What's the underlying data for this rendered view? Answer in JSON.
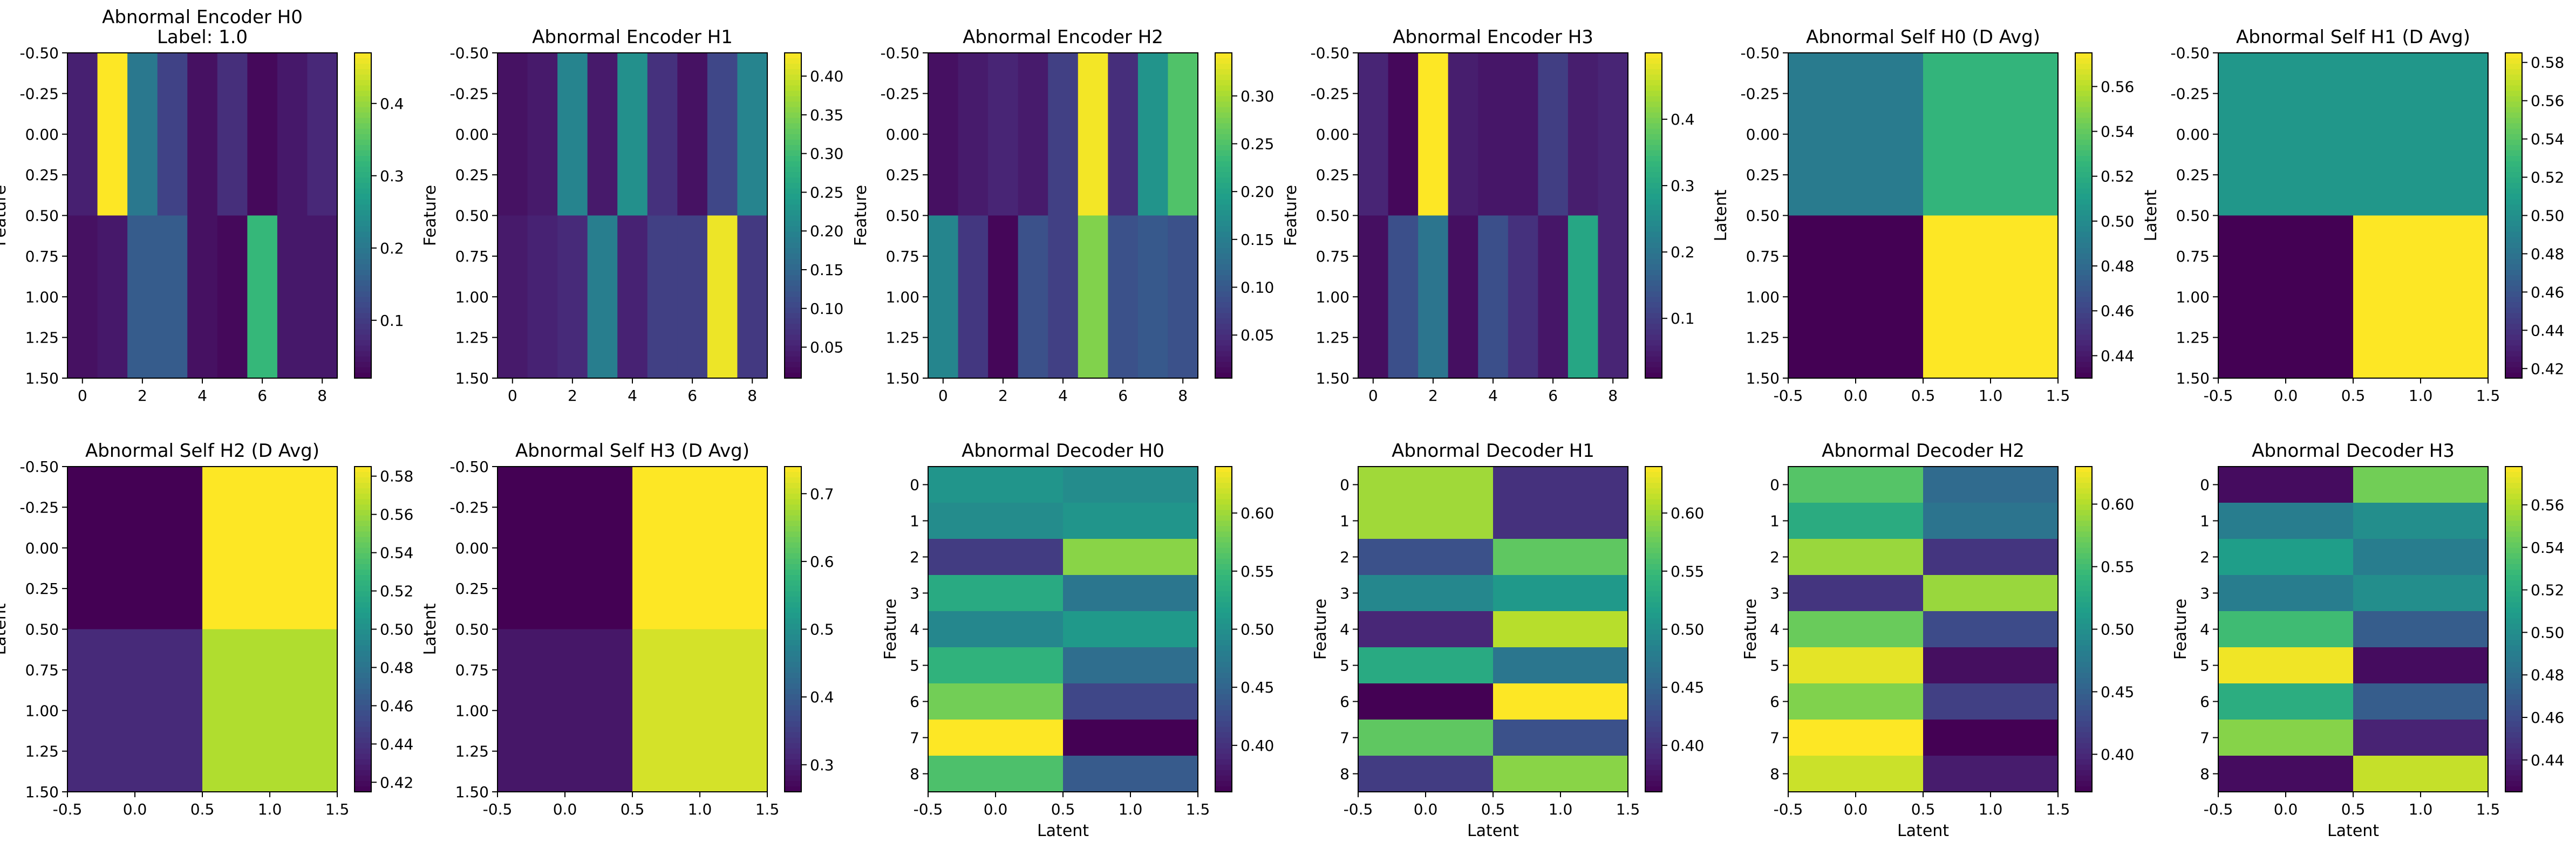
{
  "colormap": "viridis",
  "chart_data": [
    {
      "type": "heatmap",
      "title": "Abnormal Encoder H0\nLabel: 1.0",
      "xlabel": "",
      "ylabel": "Feature",
      "extent": [
        -0.5,
        8.5,
        1.5,
        -0.5
      ],
      "xticks": [
        "0",
        "2",
        "4",
        "6",
        "8"
      ],
      "yticks": [
        "-0.50",
        "-0.25",
        "0.00",
        "0.25",
        "0.50",
        "0.75",
        "1.00",
        "1.25",
        "1.50"
      ],
      "values": [
        [
          0.06,
          0.47,
          0.2,
          0.11,
          0.04,
          0.08,
          0.03,
          0.05,
          0.07
        ],
        [
          0.04,
          0.05,
          0.15,
          0.15,
          0.04,
          0.03,
          0.32,
          0.05,
          0.05
        ]
      ],
      "vmin": 0.02,
      "vmax": 0.47,
      "colorbar_ticks": [
        "0.1",
        "0.2",
        "0.3",
        "0.4"
      ]
    },
    {
      "type": "heatmap",
      "title": "Abnormal Encoder H1",
      "xlabel": "",
      "ylabel": "Feature",
      "extent": [
        -0.5,
        8.5,
        1.5,
        -0.5
      ],
      "xticks": [
        "0",
        "2",
        "4",
        "6",
        "8"
      ],
      "yticks": [
        "-0.50",
        "-0.25",
        "0.00",
        "0.25",
        "0.50",
        "0.75",
        "1.00",
        "1.25",
        "1.50"
      ],
      "values": [
        [
          0.03,
          0.04,
          0.2,
          0.04,
          0.22,
          0.07,
          0.03,
          0.1,
          0.2
        ],
        [
          0.04,
          0.05,
          0.06,
          0.19,
          0.05,
          0.09,
          0.09,
          0.42,
          0.08
        ]
      ],
      "vmin": 0.01,
      "vmax": 0.43,
      "colorbar_ticks": [
        "0.05",
        "0.10",
        "0.15",
        "0.20",
        "0.25",
        "0.30",
        "0.35",
        "0.40"
      ]
    },
    {
      "type": "heatmap",
      "title": "Abnormal Encoder H2",
      "xlabel": "",
      "ylabel": "Feature",
      "extent": [
        -0.5,
        8.5,
        1.5,
        -0.5
      ],
      "xticks": [
        "0",
        "2",
        "4",
        "6",
        "8"
      ],
      "yticks": [
        "-0.50",
        "-0.25",
        "0.00",
        "0.25",
        "0.50",
        "0.75",
        "1.00",
        "1.25",
        "1.50"
      ],
      "values": [
        [
          0.02,
          0.03,
          0.04,
          0.03,
          0.07,
          0.34,
          0.05,
          0.18,
          0.25
        ],
        [
          0.16,
          0.06,
          0.01,
          0.09,
          0.07,
          0.28,
          0.09,
          0.1,
          0.09
        ]
      ],
      "vmin": 0.005,
      "vmax": 0.345,
      "colorbar_ticks": [
        "0.05",
        "0.10",
        "0.15",
        "0.20",
        "0.25",
        "0.30"
      ]
    },
    {
      "type": "heatmap",
      "title": "Abnormal Encoder H3",
      "xlabel": "",
      "ylabel": "Feature",
      "extent": [
        -0.5,
        8.5,
        1.5,
        -0.5
      ],
      "xticks": [
        "0",
        "2",
        "4",
        "6",
        "8"
      ],
      "yticks": [
        "-0.50",
        "-0.25",
        "0.00",
        "0.25",
        "0.50",
        "0.75",
        "1.00",
        "1.25",
        "1.50"
      ],
      "values": [
        [
          0.06,
          0.02,
          0.5,
          0.05,
          0.04,
          0.04,
          0.1,
          0.05,
          0.06
        ],
        [
          0.03,
          0.13,
          0.2,
          0.03,
          0.13,
          0.08,
          0.04,
          0.3,
          0.06
        ]
      ],
      "vmin": 0.01,
      "vmax": 0.5,
      "colorbar_ticks": [
        "0.1",
        "0.2",
        "0.3",
        "0.4"
      ]
    },
    {
      "type": "heatmap",
      "title": "Abnormal Self H0 (D Avg)",
      "xlabel": "",
      "ylabel": "Latent",
      "extent": [
        -0.5,
        1.5,
        1.5,
        -0.5
      ],
      "xticks": [
        "-0.5",
        "0.0",
        "0.5",
        "1.0",
        "1.5"
      ],
      "yticks": [
        "-0.50",
        "-0.25",
        "0.00",
        "0.25",
        "0.50",
        "0.75",
        "1.00",
        "1.25",
        "1.50"
      ],
      "values": [
        [
          0.49,
          0.525
        ],
        [
          0.43,
          0.575
        ]
      ],
      "vmin": 0.43,
      "vmax": 0.575,
      "colorbar_ticks": [
        "0.44",
        "0.46",
        "0.48",
        "0.50",
        "0.52",
        "0.54",
        "0.56"
      ]
    },
    {
      "type": "heatmap",
      "title": "Abnormal Self H1 (D Avg)",
      "xlabel": "",
      "ylabel": "Latent",
      "extent": [
        -0.5,
        1.5,
        1.5,
        -0.5
      ],
      "xticks": [
        "-0.5",
        "0.0",
        "0.5",
        "1.0",
        "1.5"
      ],
      "yticks": [
        "-0.50",
        "-0.25",
        "0.00",
        "0.25",
        "0.50",
        "0.75",
        "1.00",
        "1.25",
        "1.50"
      ],
      "values": [
        [
          0.505,
          0.505
        ],
        [
          0.415,
          0.585
        ]
      ],
      "vmin": 0.415,
      "vmax": 0.585,
      "colorbar_ticks": [
        "0.42",
        "0.44",
        "0.46",
        "0.48",
        "0.50",
        "0.52",
        "0.54",
        "0.56",
        "0.58"
      ]
    },
    {
      "type": "heatmap",
      "title": "Abnormal Self H2 (D Avg)",
      "xlabel": "",
      "ylabel": "Latent",
      "extent": [
        -0.5,
        1.5,
        1.5,
        -0.5
      ],
      "xticks": [
        "-0.5",
        "0.0",
        "0.5",
        "1.0",
        "1.5"
      ],
      "yticks": [
        "-0.50",
        "-0.25",
        "0.00",
        "0.25",
        "0.50",
        "0.75",
        "1.00",
        "1.25",
        "1.50"
      ],
      "values": [
        [
          0.415,
          0.585
        ],
        [
          0.435,
          0.565
        ]
      ],
      "vmin": 0.415,
      "vmax": 0.585,
      "colorbar_ticks": [
        "0.42",
        "0.44",
        "0.46",
        "0.48",
        "0.50",
        "0.52",
        "0.54",
        "0.56",
        "0.58"
      ]
    },
    {
      "type": "heatmap",
      "title": "Abnormal Self H3 (D Avg)",
      "xlabel": "",
      "ylabel": "Latent",
      "extent": [
        -0.5,
        1.5,
        1.5,
        -0.5
      ],
      "xticks": [
        "-0.5",
        "0.0",
        "0.5",
        "1.0",
        "1.5"
      ],
      "yticks": [
        "-0.50",
        "-0.25",
        "0.00",
        "0.25",
        "0.50",
        "0.75",
        "1.00",
        "1.25",
        "1.50"
      ],
      "values": [
        [
          0.26,
          0.74
        ],
        [
          0.29,
          0.71
        ]
      ],
      "vmin": 0.26,
      "vmax": 0.74,
      "colorbar_ticks": [
        "0.3",
        "0.4",
        "0.5",
        "0.6",
        "0.7"
      ]
    },
    {
      "type": "heatmap",
      "title": "Abnormal Decoder H0",
      "xlabel": "Latent",
      "ylabel": "Feature",
      "extent": [
        -0.5,
        1.5,
        8.5,
        -0.5
      ],
      "xticks": [
        "-0.5",
        "0.0",
        "0.5",
        "1.0",
        "1.5"
      ],
      "yticks": [
        "0",
        "1",
        "2",
        "3",
        "4",
        "5",
        "6",
        "7",
        "8"
      ],
      "values": [
        [
          0.505,
          0.495
        ],
        [
          0.495,
          0.505
        ],
        [
          0.41,
          0.59
        ],
        [
          0.53,
          0.47
        ],
        [
          0.49,
          0.51
        ],
        [
          0.54,
          0.46
        ],
        [
          0.58,
          0.42
        ],
        [
          0.64,
          0.36
        ],
        [
          0.56,
          0.44
        ]
      ],
      "vmin": 0.36,
      "vmax": 0.64,
      "colorbar_ticks": [
        "0.40",
        "0.45",
        "0.50",
        "0.55",
        "0.60"
      ]
    },
    {
      "type": "heatmap",
      "title": "Abnormal Decoder H1",
      "xlabel": "Latent",
      "ylabel": "Feature",
      "extent": [
        -0.5,
        1.5,
        8.5,
        -0.5
      ],
      "xticks": [
        "-0.5",
        "0.0",
        "0.5",
        "1.0",
        "1.5"
      ],
      "yticks": [
        "0",
        "1",
        "2",
        "3",
        "4",
        "5",
        "6",
        "7",
        "8"
      ],
      "values": [
        [
          0.6,
          0.4
        ],
        [
          0.6,
          0.4
        ],
        [
          0.43,
          0.57
        ],
        [
          0.49,
          0.51
        ],
        [
          0.39,
          0.61
        ],
        [
          0.53,
          0.47
        ],
        [
          0.36,
          0.64
        ],
        [
          0.57,
          0.43
        ],
        [
          0.41,
          0.59
        ]
      ],
      "vmin": 0.36,
      "vmax": 0.64,
      "colorbar_ticks": [
        "0.40",
        "0.45",
        "0.50",
        "0.55",
        "0.60"
      ]
    },
    {
      "type": "heatmap",
      "title": "Abnormal Decoder H2",
      "xlabel": "Latent",
      "ylabel": "Feature",
      "extent": [
        -0.5,
        1.5,
        8.5,
        -0.5
      ],
      "xticks": [
        "-0.5",
        "0.0",
        "0.5",
        "1.0",
        "1.5"
      ],
      "yticks": [
        "0",
        "1",
        "2",
        "3",
        "4",
        "5",
        "6",
        "7",
        "8"
      ],
      "values": [
        [
          0.56,
          0.46
        ],
        [
          0.53,
          0.47
        ],
        [
          0.59,
          0.41
        ],
        [
          0.41,
          0.59
        ],
        [
          0.57,
          0.43
        ],
        [
          0.62,
          0.38
        ],
        [
          0.58,
          0.42
        ],
        [
          0.63,
          0.37
        ],
        [
          0.61,
          0.39
        ]
      ],
      "vmin": 0.37,
      "vmax": 0.63,
      "colorbar_ticks": [
        "0.40",
        "0.45",
        "0.50",
        "0.55",
        "0.60"
      ]
    },
    {
      "type": "heatmap",
      "title": "Abnormal Decoder H3",
      "xlabel": "Latent",
      "ylabel": "Feature",
      "extent": [
        -0.5,
        1.5,
        8.5,
        -0.5
      ],
      "xticks": [
        "-0.5",
        "0.0",
        "0.5",
        "1.0",
        "1.5"
      ],
      "yticks": [
        "0",
        "1",
        "2",
        "3",
        "4",
        "5",
        "6",
        "7",
        "8"
      ],
      "values": [
        [
          0.43,
          0.545
        ],
        [
          0.49,
          0.5
        ],
        [
          0.51,
          0.49
        ],
        [
          0.49,
          0.5
        ],
        [
          0.53,
          0.47
        ],
        [
          0.575,
          0.43
        ],
        [
          0.52,
          0.47
        ],
        [
          0.55,
          0.44
        ],
        [
          0.43,
          0.565
        ]
      ],
      "vmin": 0.425,
      "vmax": 0.578,
      "colorbar_ticks": [
        "0.44",
        "0.46",
        "0.48",
        "0.50",
        "0.52",
        "0.54",
        "0.56"
      ]
    }
  ]
}
